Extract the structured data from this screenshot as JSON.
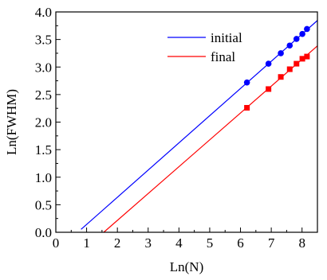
{
  "chart_data": {
    "type": "scatter",
    "xlabel": "Ln(N)",
    "ylabel": "Ln(FWHM)",
    "xlim": [
      0,
      8.5
    ],
    "ylim": [
      0,
      4.0
    ],
    "x_ticks": [
      "0",
      "1",
      "2",
      "3",
      "4",
      "5",
      "6",
      "7",
      "8"
    ],
    "y_ticks": [
      "0.0",
      "0.5",
      "1.0",
      "1.5",
      "2.0",
      "2.5",
      "3.0",
      "3.5",
      "4.0"
    ],
    "legend": {
      "placement": "top-center"
    },
    "series": [
      {
        "name": "initial",
        "color": "#0000ff",
        "marker": "circle",
        "points": [
          {
            "x": 6.21,
            "y": 2.72
          },
          {
            "x": 6.91,
            "y": 3.06
          },
          {
            "x": 7.31,
            "y": 3.25
          },
          {
            "x": 7.6,
            "y": 3.39
          },
          {
            "x": 7.82,
            "y": 3.51
          },
          {
            "x": 8.01,
            "y": 3.6
          },
          {
            "x": 8.16,
            "y": 3.69
          }
        ],
        "fit_line": {
          "x_start": 0.82,
          "x_end": 8.5
        }
      },
      {
        "name": "final",
        "color": "#ff0000",
        "marker": "square",
        "points": [
          {
            "x": 6.21,
            "y": 2.26
          },
          {
            "x": 6.91,
            "y": 2.6
          },
          {
            "x": 7.31,
            "y": 2.82
          },
          {
            "x": 7.6,
            "y": 2.96
          },
          {
            "x": 7.82,
            "y": 3.06
          },
          {
            "x": 8.01,
            "y": 3.15
          },
          {
            "x": 8.16,
            "y": 3.19
          }
        ],
        "fit_line": {
          "x_start": 1.48,
          "x_end": 8.5
        }
      }
    ]
  }
}
